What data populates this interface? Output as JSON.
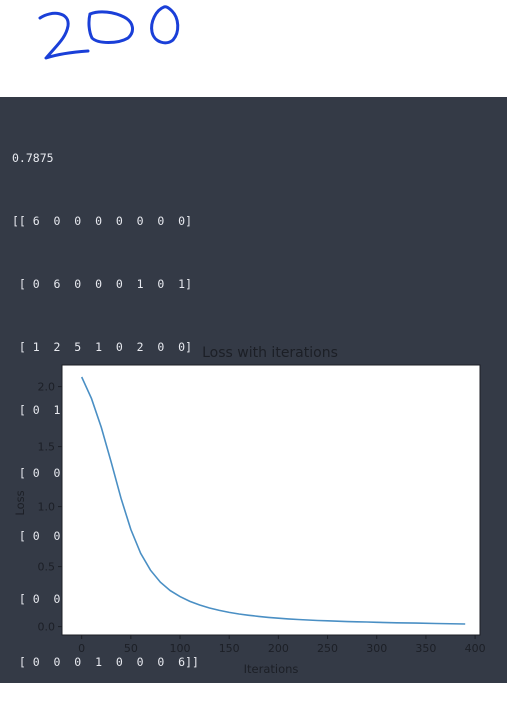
{
  "handwriting": {
    "text": "200"
  },
  "output": {
    "accuracy": "0.7875",
    "matrix_rows": [
      "[[ 6  0  0  0  0  0  0  0]",
      " [ 0  6  0  0  0  1  0  1]",
      " [ 1  2  5  1  0  2  0  0]",
      " [ 0  1  0 10  0  1  0  0]",
      " [ 0  0  1  0  9  0  0  1]",
      " [ 0  0  0  1  0 10  0  1]",
      " [ 0  0  0  1  0  0 11  1]",
      " [ 0  0  0  1  0  0  0  6]]"
    ]
  },
  "colors": {
    "background": "#343a46",
    "text": "#e8eaf0",
    "line": "#4a8fc4",
    "handwriting": "#1a3fd8"
  },
  "chart_data": {
    "type": "line",
    "title": "Loss with iterations",
    "xlabel": "Iterations",
    "ylabel": "Loss",
    "xlim": [
      -20,
      405
    ],
    "ylim": [
      -0.07,
      2.18
    ],
    "xticks": [
      0,
      50,
      100,
      150,
      200,
      250,
      300,
      350,
      400
    ],
    "yticks": [
      0.0,
      0.5,
      1.0,
      1.5,
      2.0
    ],
    "grid": false,
    "series": [
      {
        "x": [
          0,
          10,
          20,
          30,
          40,
          50,
          60,
          70,
          80,
          90,
          100,
          110,
          120,
          130,
          140,
          150,
          160,
          170,
          180,
          190,
          200,
          210,
          220,
          230,
          240,
          250,
          260,
          270,
          280,
          290,
          300,
          320,
          340,
          360,
          390
        ],
        "y": [
          2.08,
          1.9,
          1.66,
          1.37,
          1.07,
          0.81,
          0.61,
          0.47,
          0.37,
          0.3,
          0.25,
          0.21,
          0.18,
          0.155,
          0.135,
          0.118,
          0.105,
          0.094,
          0.085,
          0.077,
          0.07,
          0.064,
          0.059,
          0.055,
          0.051,
          0.048,
          0.045,
          0.042,
          0.04,
          0.038,
          0.036,
          0.032,
          0.029,
          0.026,
          0.022
        ]
      }
    ]
  }
}
